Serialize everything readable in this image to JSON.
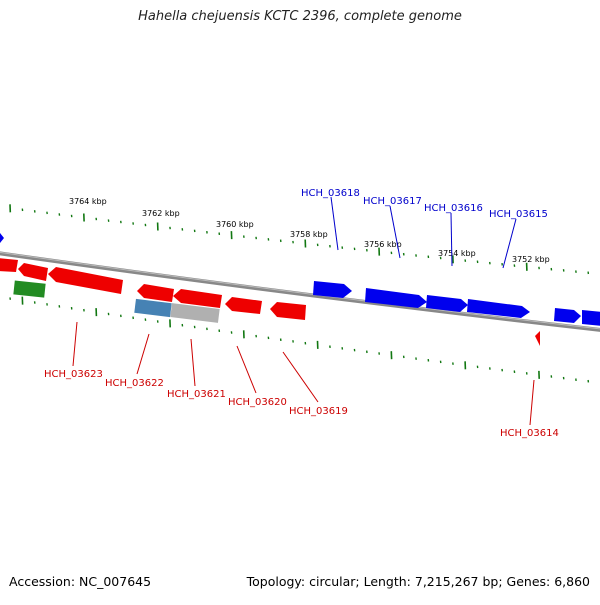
{
  "title": "Hahella chejuensis KCTC 2396, complete genome",
  "footer": {
    "accession": "Accession: NC_007645",
    "topology": "Topology: circular; Length: 7,215,267 bp; Genes: 6,860"
  },
  "colors": {
    "forward_gene": "#0000ee",
    "reverse_gene": "#ee0000",
    "rna_gene": "#228b22",
    "selected_gene": "#4682b4",
    "pseudo_gene": "#b0b0b0",
    "ticks": "#117711",
    "backbone": "#888888"
  },
  "kbp_labels": [
    "3764 kbp",
    "3762 kbp",
    "3760 kbp",
    "3758 kbp",
    "3756 kbp",
    "3754 kbp",
    "3752 kbp"
  ],
  "gene_labels": {
    "forward": [
      "HCH_03618",
      "HCH_03617",
      "HCH_03616",
      "HCH_03615"
    ],
    "reverse": [
      "HCH_03623",
      "HCH_03622",
      "HCH_03621",
      "HCH_03620",
      "HCH_03619",
      "HCH_03614"
    ]
  }
}
